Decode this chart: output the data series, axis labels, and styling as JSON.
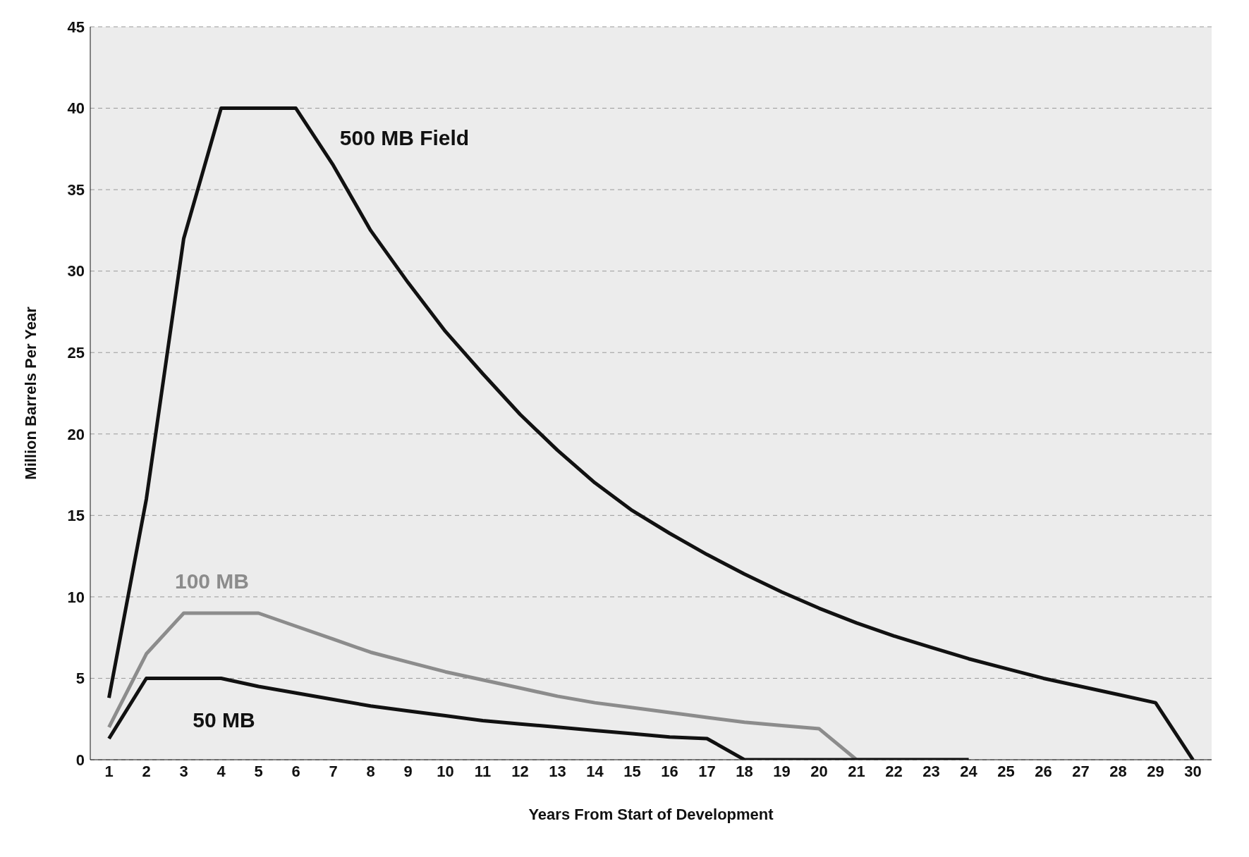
{
  "chart_data": {
    "type": "line",
    "xlabel": "Years From Start of Development",
    "ylabel": "Million Barrels Per Year",
    "x": [
      1,
      2,
      3,
      4,
      5,
      6,
      7,
      8,
      9,
      10,
      11,
      12,
      13,
      14,
      15,
      16,
      17,
      18,
      19,
      20,
      21,
      22,
      23,
      24,
      25,
      26,
      27,
      28,
      29,
      30
    ],
    "series": [
      {
        "name": "500 MB Field",
        "color": "#111111",
        "values": [
          3.8,
          16,
          32,
          40,
          40,
          40,
          36.5,
          32.5,
          29.3,
          26.3,
          23.7,
          21.2,
          19,
          17,
          15.3,
          13.9,
          12.6,
          11.4,
          10.3,
          9.3,
          8.4,
          7.6,
          6.9,
          6.2,
          5.6,
          5,
          4.5,
          4,
          3.5,
          0
        ]
      },
      {
        "name": "100 MB",
        "color": "#8c8c8c",
        "values": [
          2,
          6.5,
          9,
          9,
          9,
          8.2,
          7.4,
          6.6,
          6,
          5.4,
          4.9,
          4.4,
          3.9,
          3.5,
          3.2,
          2.9,
          2.6,
          2.3,
          2.1,
          1.9,
          0,
          0,
          0,
          0,
          null,
          null,
          null,
          null,
          null,
          null
        ]
      },
      {
        "name": "50 MB",
        "color": "#111111",
        "values": [
          1.3,
          5,
          5,
          5,
          4.5,
          4.1,
          3.7,
          3.3,
          3,
          2.7,
          2.4,
          2.2,
          2,
          1.8,
          1.6,
          1.4,
          1.3,
          0,
          0,
          0,
          0,
          0,
          0,
          0,
          null,
          null,
          null,
          null,
          null,
          null
        ]
      }
    ],
    "xlim": [
      0.5,
      30.5
    ],
    "xticks": [
      1,
      2,
      3,
      4,
      5,
      6,
      7,
      8,
      9,
      10,
      11,
      12,
      13,
      14,
      15,
      16,
      17,
      18,
      19,
      20,
      21,
      22,
      23,
      24,
      25,
      26,
      27,
      28,
      29,
      30
    ],
    "ylim": [
      0,
      45
    ],
    "yticks": [
      0,
      5,
      10,
      15,
      20,
      25,
      30,
      35,
      40,
      45
    ],
    "grid": "y",
    "legend": false,
    "marker": "none",
    "line_style": "solid"
  }
}
